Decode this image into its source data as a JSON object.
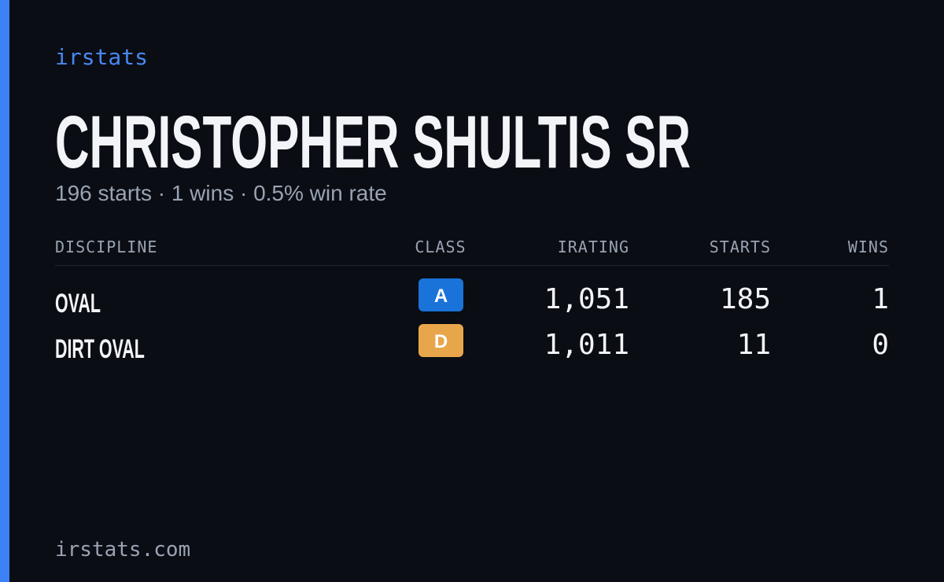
{
  "brand": "irstats",
  "header": {
    "title": "CHRISTOPHER SHULTIS SR",
    "subtitle": "196 starts · 1 wins · 0.5% win rate"
  },
  "table": {
    "columns": [
      "DISCIPLINE",
      "CLASS",
      "IRATING",
      "STARTS",
      "WINS"
    ],
    "rows": [
      {
        "discipline": "OVAL",
        "class": "A",
        "class_color": "#1a73d9",
        "irating": "1,051",
        "starts": "185",
        "wins": "1"
      },
      {
        "discipline": "DIRT OVAL",
        "class": "D",
        "class_color": "#e8a64a",
        "irating": "1,011",
        "starts": "11",
        "wins": "0"
      }
    ]
  },
  "footer": "irstats.com"
}
